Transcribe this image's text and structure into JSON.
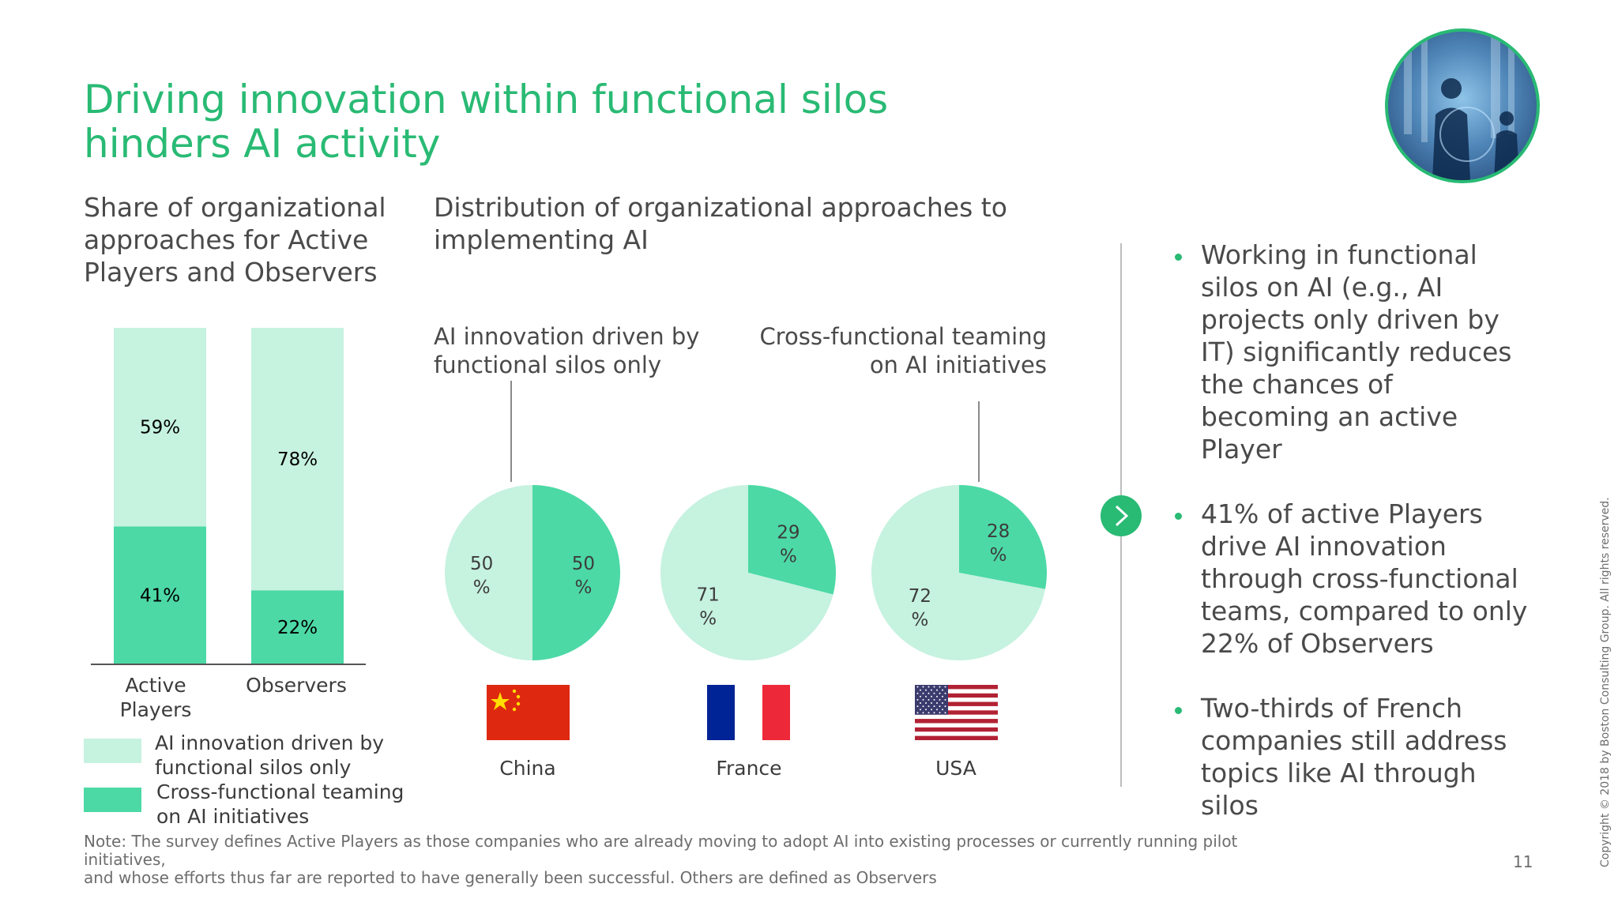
{
  "title_line1": "Driving innovation within functional silos",
  "title_line2": "hinders AI activity",
  "left_heading": [
    "Share of organizational",
    "approaches for Active",
    "Players and Observers"
  ],
  "middle_heading": [
    "Distribution of organizational approaches to",
    "implementing AI"
  ],
  "pie_annotation_left": [
    "AI innovation driven by",
    "functional silos only"
  ],
  "pie_annotation_right": [
    "Cross-functional teaming",
    "on AI initiatives"
  ],
  "legend": {
    "silos": [
      "AI innovation driven by",
      "functional silos only"
    ],
    "cross": [
      "Cross-functional teaming",
      "on AI initiatives"
    ]
  },
  "colors": {
    "accent": "#29ba74",
    "silos": "#c6f2e0",
    "cross": "#4cd9a6",
    "title": "#29ba74"
  },
  "chart_data": [
    {
      "type": "bar",
      "stacked": true,
      "categories": [
        "Active Players",
        "Observers"
      ],
      "category_label_lines": [
        [
          "Active",
          "Players"
        ],
        [
          "Observers"
        ]
      ],
      "series": [
        {
          "name": "Cross-functional teaming on AI initiatives",
          "values": [
            41,
            22
          ],
          "labels": [
            "41%",
            "22%"
          ],
          "color": "#4cd9a6"
        },
        {
          "name": "AI innovation driven by functional silos only",
          "values": [
            59,
            78
          ],
          "labels": [
            "59%",
            "78%"
          ],
          "color": "#c6f2e0"
        }
      ],
      "ylim": [
        0,
        100
      ]
    },
    {
      "type": "pie",
      "pies": [
        {
          "country": "China",
          "slices": [
            {
              "name": "Cross-functional teaming on AI initiatives",
              "value": 50,
              "label": "50",
              "unit": "%"
            },
            {
              "name": "AI innovation driven by functional silos only",
              "value": 50,
              "label": "50",
              "unit": "%"
            }
          ]
        },
        {
          "country": "France",
          "slices": [
            {
              "name": "Cross-functional teaming on AI initiatives",
              "value": 29,
              "label": "29",
              "unit": "%"
            },
            {
              "name": "AI innovation driven by functional silos only",
              "value": 71,
              "label": "71",
              "unit": "%"
            }
          ]
        },
        {
          "country": "USA",
          "slices": [
            {
              "name": "Cross-functional teaming on AI initiatives",
              "value": 28,
              "label": "28",
              "unit": "%"
            },
            {
              "name": "AI innovation driven by functional silos only",
              "value": 72,
              "label": "72",
              "unit": "%"
            }
          ]
        }
      ]
    }
  ],
  "bullets": [
    "Working in functional silos on AI (e.g., AI projects only driven by IT) significantly reduces the chances of becoming an active Player",
    "41% of active Players drive AI innovation through cross-functional teams, compared to only 22% of Observers",
    "Two-thirds of French companies still address topics like AI through silos"
  ],
  "note_line1": "Note: The survey defines Active Players as those companies who are already moving to adopt AI into existing processes or currently running pilot initiatives,",
  "note_line2": "and whose efforts thus far are reported to have generally been successful. Others are defined as Observers",
  "page_number": "11",
  "copyright": "Copyright © 2018 by Boston Consulting Group. All rights reserved.",
  "icons": {
    "next": "chevron-right-icon",
    "photo": "team-photo"
  }
}
